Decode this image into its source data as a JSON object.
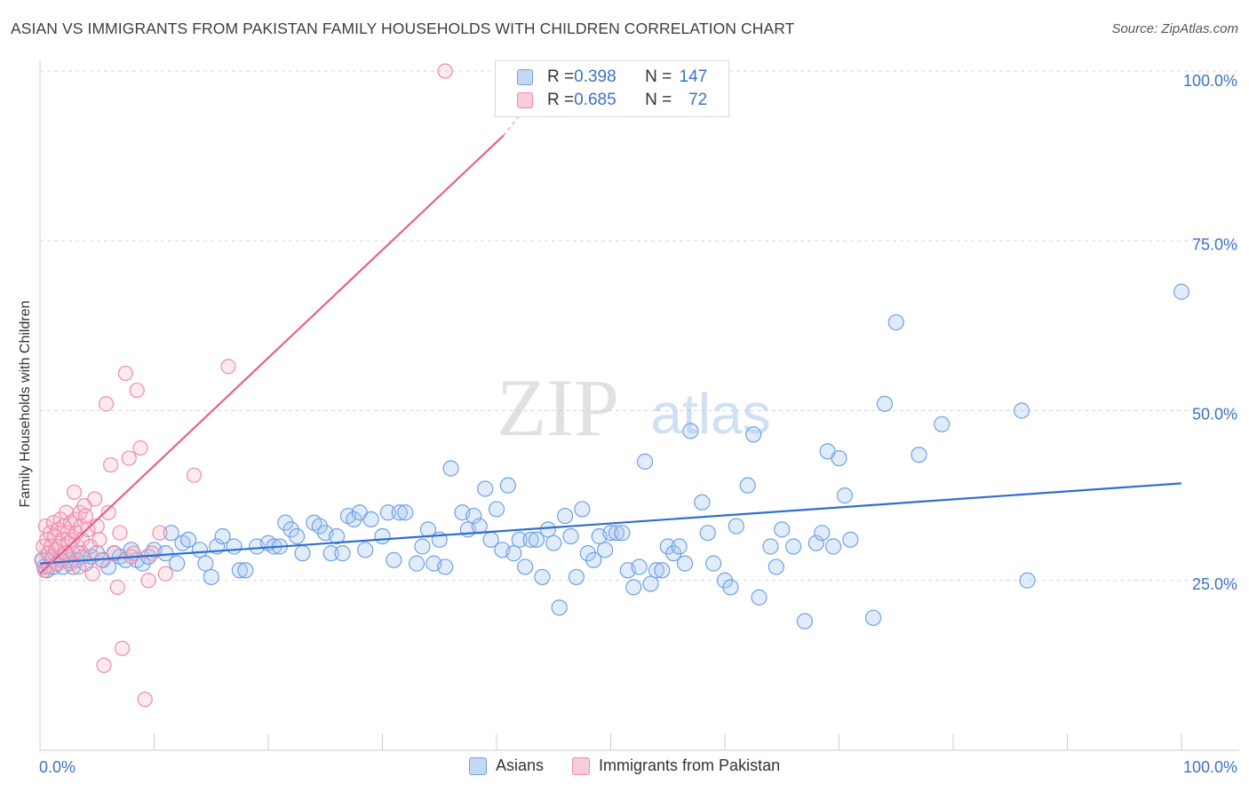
{
  "title": "ASIAN VS IMMIGRANTS FROM PAKISTAN FAMILY HOUSEHOLDS WITH CHILDREN CORRELATION CHART",
  "source": "Source: ZipAtlas.com",
  "watermark": {
    "zip": "ZIP",
    "atlas": "atlas"
  },
  "legend": {
    "rows": [
      {
        "r_label": "R = ",
        "r_value": "0.398",
        "n_label": "N = ",
        "n_value": "147"
      },
      {
        "r_label": "R = ",
        "r_value": "0.685",
        "n_label": "N = ",
        "n_value": "72"
      }
    ]
  },
  "bottom_legend": {
    "asians": "Asians",
    "pakistan": "Immigrants from Pakistan"
  },
  "chart_data": {
    "type": "scatter",
    "title": "ASIAN VS IMMIGRANTS FROM PAKISTAN FAMILY HOUSEHOLDS WITH CHILDREN CORRELATION CHART",
    "xlabel": "",
    "ylabel": "Family Households with Children",
    "xlim": [
      0,
      100
    ],
    "ylim": [
      0,
      100
    ],
    "x_tick_labels": [
      "0.0%",
      "100.0%"
    ],
    "y_tick_labels": [
      "25.0%",
      "50.0%",
      "75.0%",
      "100.0%"
    ],
    "y_tick_values": [
      25,
      50,
      75,
      100
    ],
    "colors": {
      "asians": "#6fa1e6",
      "pakistan": "#f08aab",
      "asians_line": "#2f6fd0",
      "pakistan_line": "#e8608a",
      "axis_label": "#3d72c4"
    },
    "series": [
      {
        "name": "Asians",
        "r": 0.398,
        "n": 147,
        "trend": {
          "x0": 0,
          "y0": 27.5,
          "x1": 100,
          "y1": 39.3
        },
        "points": [
          [
            0.2,
            28
          ],
          [
            0.4,
            27
          ],
          [
            0.6,
            26.5
          ],
          [
            0.8,
            29
          ],
          [
            1,
            28
          ],
          [
            1.2,
            27
          ],
          [
            1.5,
            27.5
          ],
          [
            1.8,
            28.5
          ],
          [
            2,
            27
          ],
          [
            2.3,
            29
          ],
          [
            2.6,
            28
          ],
          [
            2.9,
            27
          ],
          [
            3.2,
            28
          ],
          [
            3.6,
            29
          ],
          [
            4,
            27.5
          ],
          [
            4.5,
            28.5
          ],
          [
            5,
            29
          ],
          [
            5.5,
            28
          ],
          [
            6,
            27
          ],
          [
            6.5,
            29
          ],
          [
            7,
            28.5
          ],
          [
            7.5,
            28
          ],
          [
            8,
            29.5
          ],
          [
            8.5,
            28
          ],
          [
            9,
            27.5
          ],
          [
            9.5,
            28.5
          ],
          [
            10,
            29.5
          ],
          [
            11,
            29
          ],
          [
            11.5,
            32
          ],
          [
            12,
            27.5
          ],
          [
            12.5,
            30.5
          ],
          [
            13,
            31
          ],
          [
            14,
            29.5
          ],
          [
            14.5,
            27.5
          ],
          [
            15,
            25.5
          ],
          [
            15.5,
            30
          ],
          [
            16,
            31.5
          ],
          [
            17,
            30
          ],
          [
            17.5,
            26.5
          ],
          [
            18,
            26.5
          ],
          [
            19,
            30
          ],
          [
            20,
            30.5
          ],
          [
            20.5,
            30
          ],
          [
            21,
            30
          ],
          [
            21.5,
            33.5
          ],
          [
            22,
            32.5
          ],
          [
            22.5,
            31.5
          ],
          [
            23,
            29
          ],
          [
            24,
            33.5
          ],
          [
            24.5,
            33
          ],
          [
            25,
            32
          ],
          [
            25.5,
            29
          ],
          [
            26,
            31.5
          ],
          [
            26.5,
            29
          ],
          [
            27,
            34.5
          ],
          [
            27.5,
            34
          ],
          [
            28,
            35
          ],
          [
            28.5,
            29.5
          ],
          [
            29,
            34
          ],
          [
            30,
            31.5
          ],
          [
            30.5,
            35
          ],
          [
            31,
            28
          ],
          [
            31.5,
            35
          ],
          [
            32,
            35
          ],
          [
            33,
            27.5
          ],
          [
            33.5,
            30
          ],
          [
            34,
            32.5
          ],
          [
            34.5,
            27.5
          ],
          [
            35,
            31
          ],
          [
            35.5,
            27
          ],
          [
            36,
            41.5
          ],
          [
            37,
            35
          ],
          [
            37.5,
            32.5
          ],
          [
            38,
            34.5
          ],
          [
            38.5,
            33
          ],
          [
            39,
            38.5
          ],
          [
            39.5,
            31
          ],
          [
            40,
            35.5
          ],
          [
            40.5,
            29.5
          ],
          [
            41,
            39
          ],
          [
            41.5,
            29
          ],
          [
            42,
            31
          ],
          [
            42.5,
            27
          ],
          [
            43,
            31
          ],
          [
            43.5,
            31
          ],
          [
            44,
            25.5
          ],
          [
            44.5,
            32.5
          ],
          [
            45,
            30.5
          ],
          [
            45.5,
            21
          ],
          [
            46,
            34.5
          ],
          [
            46.5,
            31.5
          ],
          [
            47,
            25.5
          ],
          [
            47.5,
            35.5
          ],
          [
            48,
            29
          ],
          [
            48.5,
            28
          ],
          [
            49,
            31.5
          ],
          [
            49.5,
            29.5
          ],
          [
            50,
            32
          ],
          [
            50.5,
            32
          ],
          [
            51,
            32
          ],
          [
            51.5,
            26.5
          ],
          [
            52,
            24
          ],
          [
            52.5,
            27
          ],
          [
            53,
            42.5
          ],
          [
            53.5,
            24.5
          ],
          [
            54,
            26.5
          ],
          [
            54.5,
            26.5
          ],
          [
            55,
            30
          ],
          [
            55.5,
            29
          ],
          [
            56,
            30
          ],
          [
            56.5,
            27.5
          ],
          [
            57,
            47
          ],
          [
            58,
            36.5
          ],
          [
            58.5,
            32
          ],
          [
            59,
            27.5
          ],
          [
            60,
            25
          ],
          [
            60.5,
            24
          ],
          [
            61,
            33
          ],
          [
            62,
            39
          ],
          [
            62.5,
            46.5
          ],
          [
            63,
            22.5
          ],
          [
            64,
            30
          ],
          [
            64.5,
            27
          ],
          [
            65,
            32.5
          ],
          [
            66,
            30
          ],
          [
            67,
            19
          ],
          [
            68,
            30.5
          ],
          [
            68.5,
            32
          ],
          [
            69,
            44
          ],
          [
            69.5,
            30
          ],
          [
            70,
            43
          ],
          [
            70.5,
            37.5
          ],
          [
            71,
            31
          ],
          [
            73,
            19.5
          ],
          [
            74,
            51
          ],
          [
            75,
            63
          ],
          [
            77,
            43.5
          ],
          [
            79,
            48
          ],
          [
            86,
            50
          ],
          [
            86.5,
            25
          ],
          [
            100,
            67.5
          ]
        ]
      },
      {
        "name": "Immigrants from Pakistan",
        "r": 0.685,
        "n": 72,
        "trend": {
          "x0": 0,
          "y0": 26,
          "x1": 40.6,
          "y1": 90.5
        },
        "points": [
          [
            0.2,
            28
          ],
          [
            0.3,
            30
          ],
          [
            0.4,
            26.5
          ],
          [
            0.5,
            33
          ],
          [
            0.6,
            31
          ],
          [
            0.7,
            29
          ],
          [
            0.8,
            27
          ],
          [
            0.9,
            32
          ],
          [
            1,
            30
          ],
          [
            1.1,
            28.5
          ],
          [
            1.2,
            33.5
          ],
          [
            1.3,
            31.5
          ],
          [
            1.4,
            29.5
          ],
          [
            1.5,
            27.5
          ],
          [
            1.6,
            32.5
          ],
          [
            1.7,
            30
          ],
          [
            1.8,
            34
          ],
          [
            1.9,
            28
          ],
          [
            2,
            31
          ],
          [
            2.1,
            33
          ],
          [
            2.2,
            29
          ],
          [
            2.3,
            35
          ],
          [
            2.4,
            32
          ],
          [
            2.5,
            30.5
          ],
          [
            2.6,
            27.5
          ],
          [
            2.7,
            33.5
          ],
          [
            2.8,
            31
          ],
          [
            2.9,
            29
          ],
          [
            3,
            38
          ],
          [
            3.1,
            34
          ],
          [
            3.2,
            32
          ],
          [
            3.3,
            30
          ],
          [
            3.4,
            27
          ],
          [
            3.5,
            35
          ],
          [
            3.6,
            33
          ],
          [
            3.7,
            31
          ],
          [
            3.8,
            28.5
          ],
          [
            3.9,
            36
          ],
          [
            4,
            34.5
          ],
          [
            4.2,
            32.5
          ],
          [
            4.4,
            30
          ],
          [
            4.6,
            26
          ],
          [
            4.8,
            37
          ],
          [
            5,
            33
          ],
          [
            5.2,
            31
          ],
          [
            5.4,
            28
          ],
          [
            5.6,
            12.5
          ],
          [
            5.8,
            51
          ],
          [
            6,
            35
          ],
          [
            6.2,
            42
          ],
          [
            6.5,
            29
          ],
          [
            6.8,
            24
          ],
          [
            7,
            32
          ],
          [
            7.2,
            15
          ],
          [
            7.5,
            55.5
          ],
          [
            7.8,
            43
          ],
          [
            8,
            28.5
          ],
          [
            8.2,
            29
          ],
          [
            8.5,
            53
          ],
          [
            8.8,
            44.5
          ],
          [
            9.2,
            7.5
          ],
          [
            9.5,
            25
          ],
          [
            9.8,
            29
          ],
          [
            10.5,
            32
          ],
          [
            11,
            26
          ],
          [
            13.5,
            40.5
          ],
          [
            16.5,
            56.5
          ],
          [
            35.5,
            100
          ]
        ]
      }
    ]
  }
}
